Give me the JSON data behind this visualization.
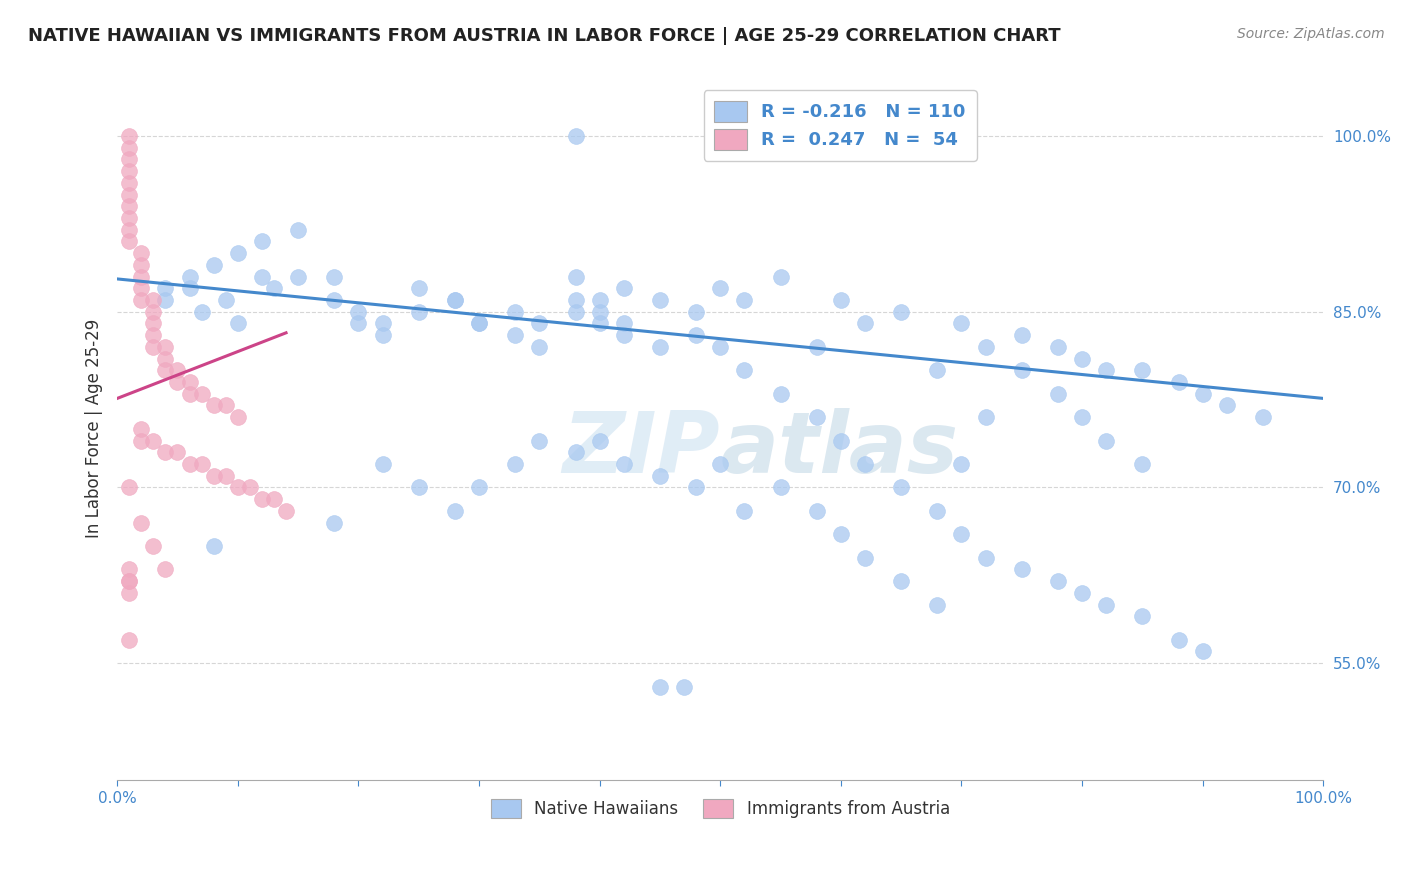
{
  "title": "NATIVE HAWAIIAN VS IMMIGRANTS FROM AUSTRIA IN LABOR FORCE | AGE 25-29 CORRELATION CHART",
  "source": "Source: ZipAtlas.com",
  "ylabel": "In Labor Force | Age 25-29",
  "bottom_legend": [
    "Native Hawaiians",
    "Immigrants from Austria"
  ],
  "blue_scatter_x": [
    0.38,
    0.04,
    0.06,
    0.07,
    0.09,
    0.1,
    0.13,
    0.15,
    0.18,
    0.2,
    0.22,
    0.25,
    0.28,
    0.3,
    0.33,
    0.35,
    0.38,
    0.4,
    0.42,
    0.45,
    0.48,
    0.5,
    0.52,
    0.55,
    0.58,
    0.6,
    0.62,
    0.65,
    0.68,
    0.7,
    0.72,
    0.75,
    0.78,
    0.8,
    0.82,
    0.85,
    0.88,
    0.9,
    0.92,
    0.95,
    0.38,
    0.4,
    0.18,
    0.22,
    0.25,
    0.28,
    0.3,
    0.33,
    0.35,
    0.38,
    0.4,
    0.42,
    0.45,
    0.48,
    0.5,
    0.52,
    0.55,
    0.58,
    0.6,
    0.62,
    0.65,
    0.68,
    0.7,
    0.72,
    0.75,
    0.78,
    0.8,
    0.82,
    0.85,
    0.04,
    0.06,
    0.08,
    0.1,
    0.12,
    0.15,
    0.18,
    0.2,
    0.22,
    0.25,
    0.28,
    0.3,
    0.33,
    0.35,
    0.38,
    0.4,
    0.42,
    0.45,
    0.48,
    0.5,
    0.52,
    0.55,
    0.58,
    0.6,
    0.62,
    0.65,
    0.68,
    0.7,
    0.72,
    0.75,
    0.78,
    0.8,
    0.82,
    0.85,
    0.88,
    0.9,
    0.45,
    0.47,
    0.08,
    0.12,
    0.42
  ],
  "blue_scatter_y": [
    1.0,
    0.87,
    0.87,
    0.85,
    0.86,
    0.84,
    0.87,
    0.88,
    0.86,
    0.85,
    0.84,
    0.87,
    0.86,
    0.84,
    0.85,
    0.84,
    0.86,
    0.85,
    0.84,
    0.86,
    0.85,
    0.87,
    0.86,
    0.88,
    0.82,
    0.86,
    0.84,
    0.85,
    0.8,
    0.84,
    0.82,
    0.83,
    0.82,
    0.81,
    0.8,
    0.8,
    0.79,
    0.78,
    0.77,
    0.76,
    0.88,
    0.86,
    0.67,
    0.72,
    0.7,
    0.68,
    0.7,
    0.72,
    0.74,
    0.73,
    0.74,
    0.72,
    0.71,
    0.7,
    0.72,
    0.68,
    0.7,
    0.68,
    0.66,
    0.64,
    0.62,
    0.6,
    0.72,
    0.76,
    0.8,
    0.78,
    0.76,
    0.74,
    0.72,
    0.86,
    0.88,
    0.89,
    0.9,
    0.91,
    0.92,
    0.88,
    0.84,
    0.83,
    0.85,
    0.86,
    0.84,
    0.83,
    0.82,
    0.85,
    0.84,
    0.83,
    0.82,
    0.83,
    0.82,
    0.8,
    0.78,
    0.76,
    0.74,
    0.72,
    0.7,
    0.68,
    0.66,
    0.64,
    0.63,
    0.62,
    0.61,
    0.6,
    0.59,
    0.57,
    0.56,
    0.53,
    0.53,
    0.65,
    0.88,
    0.87
  ],
  "pink_scatter_x": [
    0.01,
    0.01,
    0.01,
    0.01,
    0.01,
    0.01,
    0.01,
    0.01,
    0.01,
    0.01,
    0.02,
    0.02,
    0.02,
    0.02,
    0.02,
    0.03,
    0.03,
    0.03,
    0.03,
    0.03,
    0.04,
    0.04,
    0.04,
    0.05,
    0.05,
    0.06,
    0.06,
    0.07,
    0.08,
    0.09,
    0.1,
    0.01,
    0.02,
    0.03,
    0.04,
    0.01,
    0.01,
    0.01,
    0.01,
    0.02,
    0.02,
    0.03,
    0.04,
    0.05,
    0.06,
    0.07,
    0.08,
    0.09,
    0.1,
    0.11,
    0.12,
    0.13,
    0.14,
    0.01
  ],
  "pink_scatter_y": [
    1.0,
    0.99,
    0.98,
    0.97,
    0.96,
    0.95,
    0.94,
    0.93,
    0.92,
    0.91,
    0.9,
    0.89,
    0.88,
    0.87,
    0.86,
    0.86,
    0.85,
    0.84,
    0.83,
    0.82,
    0.82,
    0.81,
    0.8,
    0.8,
    0.79,
    0.79,
    0.78,
    0.78,
    0.77,
    0.77,
    0.76,
    0.7,
    0.67,
    0.65,
    0.63,
    0.63,
    0.62,
    0.62,
    0.61,
    0.75,
    0.74,
    0.74,
    0.73,
    0.73,
    0.72,
    0.72,
    0.71,
    0.71,
    0.7,
    0.7,
    0.69,
    0.69,
    0.68,
    0.57
  ],
  "blue_line_x": [
    0.0,
    1.0
  ],
  "blue_line_y": [
    0.878,
    0.776
  ],
  "pink_line_x": [
    0.0,
    0.14
  ],
  "pink_line_y": [
    0.776,
    0.832
  ],
  "blue_color": "#a8c8f0",
  "pink_color": "#f0a8c0",
  "blue_line_color": "#4488cc",
  "pink_line_color": "#cc4488",
  "background_color": "#ffffff",
  "grid_color": "#cccccc",
  "watermark_zip": "ZIP",
  "watermark_atlas": "atlas",
  "xlim": [
    0.0,
    1.0
  ],
  "ylim": [
    0.45,
    1.05
  ],
  "legend_blue_r": "R = ",
  "legend_blue_r_val": "-0.216",
  "legend_blue_n": "N = ",
  "legend_blue_n_val": "110",
  "legend_pink_r_val": "0.247",
  "legend_pink_n_val": "54"
}
